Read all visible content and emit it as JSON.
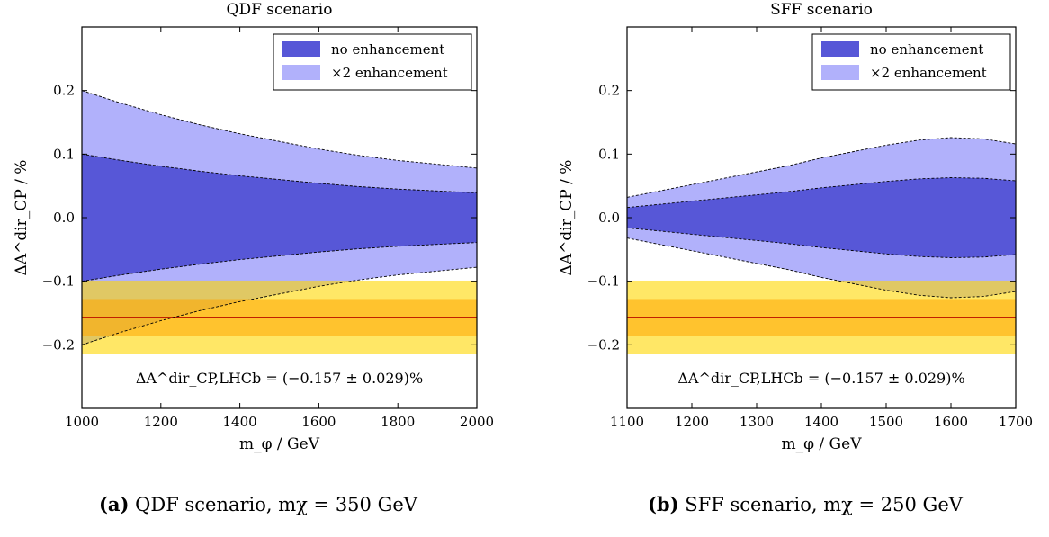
{
  "chart_data": [
    {
      "type": "area",
      "title": "QDF scenario",
      "xlabel": "m_φ / GeV",
      "ylabel": "ΔA^dir_CP / %",
      "xlim": [
        1000,
        2000
      ],
      "ylim": [
        -0.3,
        0.3
      ],
      "xticks": [
        1000,
        1200,
        1400,
        1600,
        1800,
        2000
      ],
      "xtick_labels": [
        "1000",
        "1200",
        "1400",
        "1600",
        "1800",
        "2000"
      ],
      "yticks": [
        -0.2,
        -0.1,
        0.0,
        0.1,
        0.2
      ],
      "ytick_labels": [
        "−0.2",
        "−0.1",
        "0.0",
        "0.1",
        "0.2"
      ],
      "legend": {
        "position": "top-right",
        "entries": [
          "no enhancement",
          "×2 enhancement"
        ]
      },
      "annotation": "ΔA^dir_CP,LHCb = (−0.157 ± 0.029)%",
      "measurement": {
        "central": -0.157,
        "sigma": 0.029
      },
      "x": [
        1000,
        1100,
        1200,
        1300,
        1400,
        1500,
        1600,
        1700,
        1800,
        1900,
        2000
      ],
      "series": [
        {
          "name": "no enhancement",
          "upper": [
            0.1,
            0.09,
            0.081,
            0.073,
            0.066,
            0.06,
            0.054,
            0.049,
            0.045,
            0.042,
            0.039
          ]
        },
        {
          "name": "×2 enhancement",
          "upper": [
            0.2,
            0.18,
            0.162,
            0.146,
            0.132,
            0.12,
            0.108,
            0.098,
            0.09,
            0.084,
            0.078
          ]
        }
      ]
    },
    {
      "type": "area",
      "title": "SFF scenario",
      "xlabel": "m_φ / GeV",
      "ylabel": "ΔA^dir_CP / %",
      "xlim": [
        1100,
        1700
      ],
      "ylim": [
        -0.3,
        0.3
      ],
      "xticks": [
        1100,
        1200,
        1300,
        1400,
        1500,
        1600,
        1700
      ],
      "xtick_labels": [
        "1100",
        "1200",
        "1300",
        "1400",
        "1500",
        "1600",
        "1700"
      ],
      "yticks": [
        -0.2,
        -0.1,
        0.0,
        0.1,
        0.2
      ],
      "ytick_labels": [
        "−0.2",
        "−0.1",
        "0.0",
        "0.1",
        "0.2"
      ],
      "legend": {
        "position": "top-right",
        "entries": [
          "no enhancement",
          "×2 enhancement"
        ]
      },
      "annotation": "ΔA^dir_CP,LHCb = (−0.157 ± 0.029)%",
      "measurement": {
        "central": -0.157,
        "sigma": 0.029
      },
      "x": [
        1100,
        1150,
        1200,
        1250,
        1300,
        1350,
        1400,
        1450,
        1500,
        1550,
        1600,
        1650,
        1700
      ],
      "series": [
        {
          "name": "no enhancement",
          "upper": [
            0.016,
            0.021,
            0.026,
            0.031,
            0.036,
            0.041,
            0.047,
            0.052,
            0.057,
            0.061,
            0.063,
            0.062,
            0.058
          ]
        },
        {
          "name": "×2 enhancement",
          "upper": [
            0.032,
            0.042,
            0.052,
            0.062,
            0.072,
            0.082,
            0.094,
            0.104,
            0.114,
            0.122,
            0.126,
            0.124,
            0.116
          ]
        }
      ]
    }
  ],
  "colors": {
    "no_enhancement": "#5757d7",
    "x2_enhancement": "#b1b1fb",
    "band_1sigma": "#ffa500",
    "band_2sigma": "#ffd700",
    "central_line": "#c22000"
  },
  "captions": [
    {
      "label": "(a)",
      "text": "QDF scenario, mχ = 350 GeV"
    },
    {
      "label": "(b)",
      "text": "SFF scenario, mχ = 250 GeV"
    }
  ]
}
